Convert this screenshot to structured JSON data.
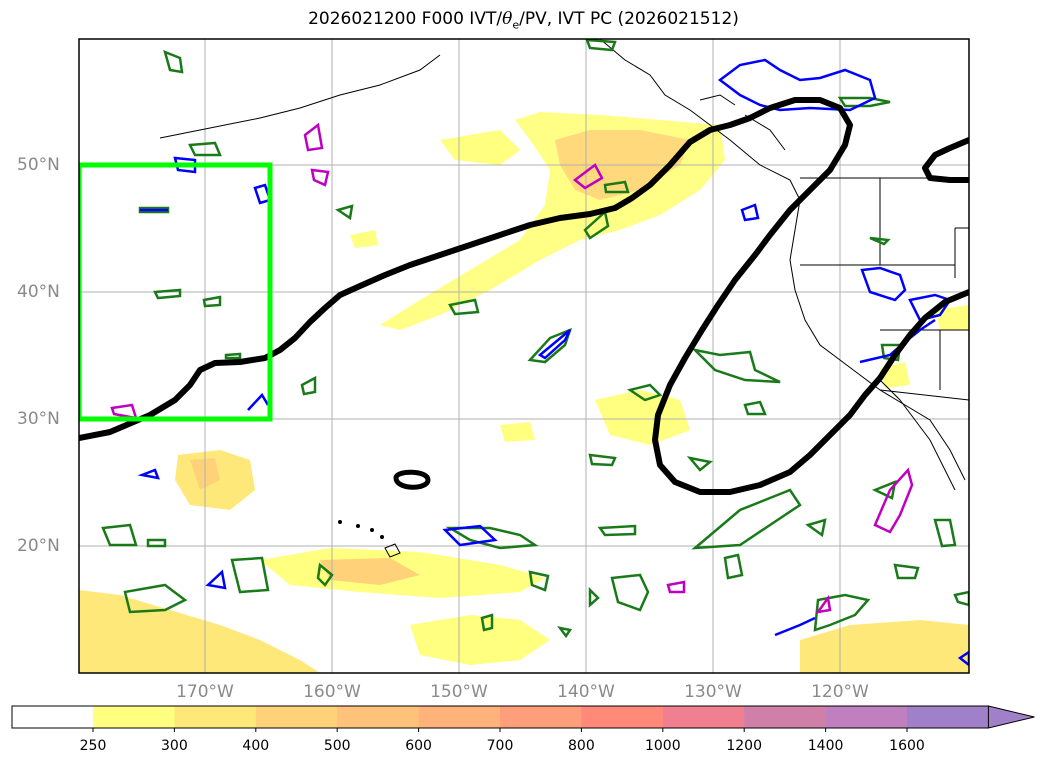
{
  "title": {
    "prefix": "2026021200 F000 IVT/",
    "theta": "θ",
    "sub": "e",
    "suffix": "/PV, IVT PC (2026021512)"
  },
  "lat_labels": [
    "50°N",
    "40°N",
    "30°N",
    "20°N"
  ],
  "lon_labels": [
    "170°W",
    "160°W",
    "150°W",
    "140°W",
    "130°W",
    "120°W"
  ],
  "colorbar": {
    "ticks": [
      "250",
      "300",
      "400",
      "500",
      "600",
      "700",
      "800",
      "1000",
      "1200",
      "1400",
      "1600"
    ],
    "colors": [
      "#ffffff",
      "#ffff80",
      "#ffe87a",
      "#ffd27a",
      "#ffc27a",
      "#ffb27a",
      "#ff9e7a",
      "#ff8a7a",
      "#f08090",
      "#d080a8",
      "#c080c0",
      "#a080c8"
    ]
  },
  "colors": {
    "ivt_contour": "#000000",
    "box": "#00ff00",
    "theta_e": "#1a7a1a",
    "pv_blue": "#0000ff",
    "pv_magenta": "#c000c0"
  }
}
